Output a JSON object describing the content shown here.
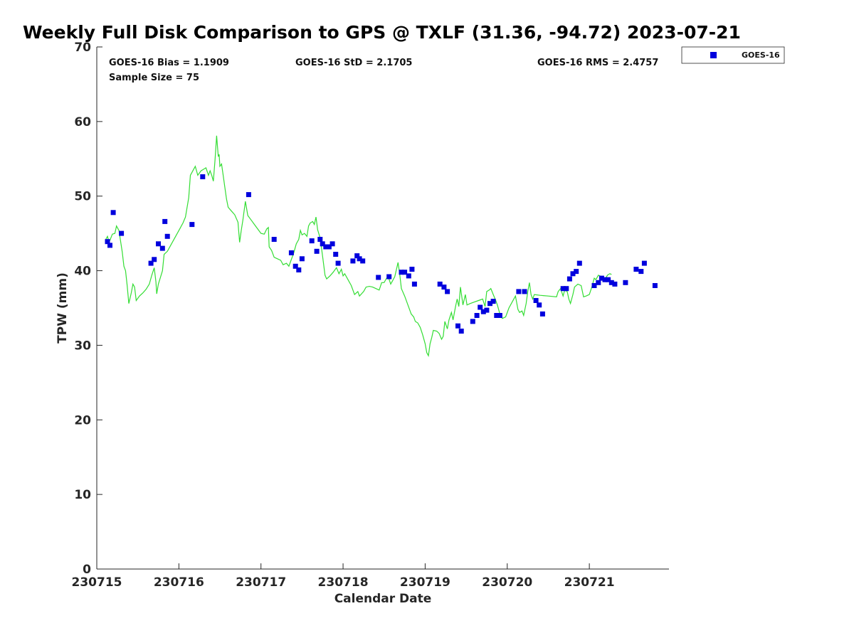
{
  "chart_data": {
    "type": "scatter",
    "title": "Weekly Full Disk Comparison to GPS @ TXLF (31.36, -94.72) 2023-07-21",
    "xlabel": "Calendar Date",
    "ylabel": "TPW (mm)",
    "xlim": [
      0,
      6.97
    ],
    "ylim": [
      0,
      70
    ],
    "x_ticks": [
      {
        "value": 0,
        "label": "230715"
      },
      {
        "value": 1,
        "label": "230716"
      },
      {
        "value": 2,
        "label": "230717"
      },
      {
        "value": 3,
        "label": "230718"
      },
      {
        "value": 4,
        "label": "230719"
      },
      {
        "value": 5,
        "label": "230720"
      },
      {
        "value": 6,
        "label": "230721"
      }
    ],
    "y_ticks": [
      {
        "value": 0,
        "label": "0"
      },
      {
        "value": 10,
        "label": "10"
      },
      {
        "value": 20,
        "label": "20"
      },
      {
        "value": 30,
        "label": "30"
      },
      {
        "value": 40,
        "label": "40"
      },
      {
        "value": 50,
        "label": "50"
      },
      {
        "value": 60,
        "label": "60"
      },
      {
        "value": 70,
        "label": "70"
      }
    ],
    "stats": {
      "bias": "GOES-16 Bias = 1.1909",
      "std": "GOES-16 StD = 2.1705",
      "rms": "GOES-16 RMS = 2.4757",
      "sample": "Sample Size = 75"
    },
    "legend": {
      "label": "GOES-16",
      "position": "top-right outside"
    },
    "colors": {
      "goes": "#0000dd",
      "gps": "#33dd33"
    },
    "gps_line": [
      [
        0.11,
        44.2
      ],
      [
        0.13,
        44.6
      ],
      [
        0.15,
        43.8
      ],
      [
        0.19,
        44.9
      ],
      [
        0.22,
        45.0
      ],
      [
        0.24,
        46.0
      ],
      [
        0.27,
        45.4
      ],
      [
        0.31,
        42.5
      ],
      [
        0.33,
        40.6
      ],
      [
        0.35,
        40.0
      ],
      [
        0.37,
        38.0
      ],
      [
        0.39,
        35.6
      ],
      [
        0.42,
        37.0
      ],
      [
        0.44,
        38.2
      ],
      [
        0.46,
        37.8
      ],
      [
        0.48,
        36.0
      ],
      [
        0.52,
        36.6
      ],
      [
        0.56,
        37.0
      ],
      [
        0.6,
        37.5
      ],
      [
        0.64,
        38.2
      ],
      [
        0.67,
        39.4
      ],
      [
        0.7,
        40.4
      ],
      [
        0.72,
        38.5
      ],
      [
        0.73,
        36.9
      ],
      [
        0.75,
        38.2
      ],
      [
        0.77,
        38.9
      ],
      [
        0.8,
        40.0
      ],
      [
        0.82,
        42.2
      ],
      [
        0.86,
        42.6
      ],
      [
        0.9,
        43.4
      ],
      [
        0.95,
        44.4
      ],
      [
        1.0,
        45.4
      ],
      [
        1.05,
        46.4
      ],
      [
        1.08,
        47.2
      ],
      [
        1.12,
        49.8
      ],
      [
        1.14,
        52.8
      ],
      [
        1.17,
        53.4
      ],
      [
        1.2,
        54.0
      ],
      [
        1.23,
        52.8
      ],
      [
        1.27,
        53.4
      ],
      [
        1.3,
        53.6
      ],
      [
        1.33,
        53.8
      ],
      [
        1.36,
        52.8
      ],
      [
        1.38,
        53.4
      ],
      [
        1.4,
        52.8
      ],
      [
        1.42,
        52.0
      ],
      [
        1.44,
        54.8
      ],
      [
        1.46,
        58.1
      ],
      [
        1.48,
        55.3
      ],
      [
        1.49,
        55.6
      ],
      [
        1.5,
        54.0
      ],
      [
        1.52,
        54.3
      ],
      [
        1.54,
        52.8
      ],
      [
        1.56,
        51.2
      ],
      [
        1.58,
        49.6
      ],
      [
        1.6,
        48.5
      ],
      [
        1.64,
        48.0
      ],
      [
        1.68,
        47.5
      ],
      [
        1.72,
        46.5
      ],
      [
        1.74,
        43.8
      ],
      [
        1.76,
        45.4
      ],
      [
        1.78,
        46.8
      ],
      [
        1.81,
        49.3
      ],
      [
        1.84,
        47.4
      ],
      [
        1.88,
        46.8
      ],
      [
        1.92,
        46.2
      ],
      [
        1.96,
        45.6
      ],
      [
        2.0,
        45.0
      ],
      [
        2.04,
        44.9
      ],
      [
        2.07,
        45.6
      ],
      [
        2.09,
        45.8
      ],
      [
        2.1,
        43.2
      ],
      [
        2.13,
        42.7
      ],
      [
        2.16,
        41.8
      ],
      [
        2.2,
        41.6
      ],
      [
        2.24,
        41.4
      ],
      [
        2.27,
        40.8
      ],
      [
        2.31,
        41.0
      ],
      [
        2.34,
        40.6
      ],
      [
        2.36,
        41.2
      ],
      [
        2.4,
        42.4
      ],
      [
        2.43,
        43.6
      ],
      [
        2.46,
        44.2
      ],
      [
        2.48,
        45.4
      ],
      [
        2.5,
        44.8
      ],
      [
        2.53,
        45.0
      ],
      [
        2.56,
        44.6
      ],
      [
        2.58,
        46.0
      ],
      [
        2.6,
        46.4
      ],
      [
        2.63,
        46.6
      ],
      [
        2.65,
        46.2
      ],
      [
        2.67,
        47.2
      ],
      [
        2.69,
        45.5
      ],
      [
        2.72,
        44.4
      ],
      [
        2.75,
        42.0
      ],
      [
        2.78,
        39.4
      ],
      [
        2.8,
        38.9
      ],
      [
        2.84,
        39.3
      ],
      [
        2.88,
        39.8
      ],
      [
        2.92,
        40.4
      ],
      [
        2.95,
        39.6
      ],
      [
        2.98,
        40.2
      ],
      [
        3.0,
        39.3
      ],
      [
        3.02,
        39.6
      ],
      [
        3.06,
        38.8
      ],
      [
        3.1,
        38.0
      ],
      [
        3.14,
        36.8
      ],
      [
        3.18,
        37.2
      ],
      [
        3.2,
        36.6
      ],
      [
        3.25,
        37.2
      ],
      [
        3.28,
        37.8
      ],
      [
        3.32,
        37.9
      ],
      [
        3.36,
        37.8
      ],
      [
        3.4,
        37.6
      ],
      [
        3.44,
        37.4
      ],
      [
        3.47,
        38.4
      ],
      [
        3.5,
        38.4
      ],
      [
        3.53,
        39.0
      ],
      [
        3.55,
        39.2
      ],
      [
        3.58,
        38.2
      ],
      [
        3.6,
        38.6
      ],
      [
        3.63,
        39.2
      ],
      [
        3.67,
        41.1
      ],
      [
        3.69,
        39.6
      ],
      [
        3.71,
        37.6
      ],
      [
        3.75,
        36.6
      ],
      [
        3.79,
        35.4
      ],
      [
        3.83,
        34.2
      ],
      [
        3.86,
        33.8
      ],
      [
        3.88,
        33.2
      ],
      [
        3.91,
        33.0
      ],
      [
        3.94,
        32.4
      ],
      [
        3.97,
        31.4
      ],
      [
        4.0,
        30.2
      ],
      [
        4.02,
        29.0
      ],
      [
        4.04,
        28.6
      ],
      [
        4.06,
        30.2
      ],
      [
        4.08,
        31.0
      ],
      [
        4.1,
        32.0
      ],
      [
        4.14,
        31.9
      ],
      [
        4.17,
        31.6
      ],
      [
        4.2,
        30.8
      ],
      [
        4.22,
        31.2
      ],
      [
        4.24,
        33.2
      ],
      [
        4.27,
        32.2
      ],
      [
        4.29,
        33.4
      ],
      [
        4.32,
        34.4
      ],
      [
        4.34,
        33.4
      ],
      [
        4.37,
        35.2
      ],
      [
        4.39,
        36.2
      ],
      [
        4.41,
        35.2
      ],
      [
        4.43,
        37.8
      ],
      [
        4.46,
        35.4
      ],
      [
        4.49,
        36.8
      ],
      [
        4.51,
        35.4
      ],
      [
        4.55,
        35.6
      ],
      [
        4.6,
        35.8
      ],
      [
        4.65,
        36.0
      ],
      [
        4.7,
        36.2
      ],
      [
        4.73,
        35.2
      ],
      [
        4.75,
        37.2
      ],
      [
        4.78,
        37.4
      ],
      [
        4.8,
        37.6
      ],
      [
        4.83,
        36.8
      ],
      [
        4.86,
        36.0
      ],
      [
        4.88,
        35.4
      ],
      [
        4.91,
        34.2
      ],
      [
        4.94,
        33.6
      ],
      [
        4.98,
        33.8
      ],
      [
        5.02,
        35.0
      ],
      [
        5.06,
        35.8
      ],
      [
        5.1,
        36.6
      ],
      [
        5.13,
        34.8
      ],
      [
        5.15,
        34.4
      ],
      [
        5.18,
        34.6
      ],
      [
        5.2,
        34.0
      ],
      [
        5.23,
        35.6
      ],
      [
        5.25,
        37.2
      ],
      [
        5.27,
        38.4
      ],
      [
        5.29,
        36.8
      ],
      [
        5.31,
        36.2
      ],
      [
        5.33,
        36.8
      ],
      [
        5.4,
        36.7
      ],
      [
        5.5,
        36.6
      ],
      [
        5.6,
        36.5
      ],
      [
        5.62,
        37.2
      ],
      [
        5.65,
        37.6
      ],
      [
        5.68,
        36.6
      ],
      [
        5.7,
        37.4
      ],
      [
        5.73,
        37.2
      ],
      [
        5.75,
        36.2
      ],
      [
        5.77,
        35.6
      ],
      [
        5.8,
        36.8
      ],
      [
        5.82,
        37.8
      ],
      [
        5.86,
        38.2
      ],
      [
        5.9,
        38.0
      ],
      [
        5.93,
        36.5
      ],
      [
        5.96,
        36.6
      ],
      [
        6.0,
        36.8
      ],
      [
        6.03,
        37.8
      ],
      [
        6.06,
        39.0
      ],
      [
        6.08,
        38.8
      ],
      [
        6.11,
        39.4
      ],
      [
        6.15,
        39.2
      ],
      [
        6.19,
        38.8
      ],
      [
        6.22,
        39.4
      ],
      [
        6.25,
        39.6
      ],
      [
        6.27,
        39.5
      ]
    ],
    "goes_points": [
      [
        0.13,
        43.9
      ],
      [
        0.16,
        43.4
      ],
      [
        0.2,
        47.8
      ],
      [
        0.3,
        45.0
      ],
      [
        0.66,
        41.0
      ],
      [
        0.7,
        41.5
      ],
      [
        0.75,
        43.6
      ],
      [
        0.8,
        43.0
      ],
      [
        0.83,
        46.6
      ],
      [
        0.86,
        44.6
      ],
      [
        1.16,
        46.2
      ],
      [
        1.29,
        52.6
      ],
      [
        1.85,
        50.2
      ],
      [
        2.16,
        44.2
      ],
      [
        2.37,
        42.4
      ],
      [
        2.42,
        40.6
      ],
      [
        2.46,
        40.1
      ],
      [
        2.5,
        41.6
      ],
      [
        2.62,
        44.0
      ],
      [
        2.68,
        42.6
      ],
      [
        2.72,
        44.2
      ],
      [
        2.75,
        43.6
      ],
      [
        2.79,
        43.2
      ],
      [
        2.83,
        43.2
      ],
      [
        2.87,
        43.6
      ],
      [
        2.91,
        42.2
      ],
      [
        2.94,
        41.0
      ],
      [
        3.12,
        41.3
      ],
      [
        3.17,
        42.0
      ],
      [
        3.2,
        41.6
      ],
      [
        3.24,
        41.3
      ],
      [
        3.43,
        39.1
      ],
      [
        3.56,
        39.2
      ],
      [
        3.71,
        39.8
      ],
      [
        3.75,
        39.8
      ],
      [
        3.8,
        39.3
      ],
      [
        3.84,
        40.2
      ],
      [
        3.87,
        38.2
      ],
      [
        4.18,
        38.2
      ],
      [
        4.23,
        37.8
      ],
      [
        4.27,
        37.2
      ],
      [
        4.4,
        32.6
      ],
      [
        4.44,
        31.9
      ],
      [
        4.58,
        33.2
      ],
      [
        4.63,
        34.0
      ],
      [
        4.67,
        35.1
      ],
      [
        4.71,
        34.5
      ],
      [
        4.75,
        34.7
      ],
      [
        4.79,
        35.6
      ],
      [
        4.83,
        35.9
      ],
      [
        4.87,
        34.0
      ],
      [
        4.91,
        34.0
      ],
      [
        5.14,
        37.2
      ],
      [
        5.21,
        37.2
      ],
      [
        5.35,
        36.0
      ],
      [
        5.39,
        35.4
      ],
      [
        5.43,
        34.2
      ],
      [
        5.68,
        37.6
      ],
      [
        5.72,
        37.6
      ],
      [
        5.76,
        38.9
      ],
      [
        5.8,
        39.6
      ],
      [
        5.84,
        39.9
      ],
      [
        5.88,
        41.0
      ],
      [
        6.06,
        38.0
      ],
      [
        6.11,
        38.4
      ],
      [
        6.15,
        39.0
      ],
      [
        6.19,
        38.8
      ],
      [
        6.23,
        38.8
      ],
      [
        6.27,
        38.4
      ],
      [
        6.31,
        38.2
      ],
      [
        6.44,
        38.4
      ],
      [
        6.57,
        40.2
      ],
      [
        6.63,
        39.9
      ],
      [
        6.67,
        41.0
      ],
      [
        6.8,
        38.0
      ]
    ]
  }
}
